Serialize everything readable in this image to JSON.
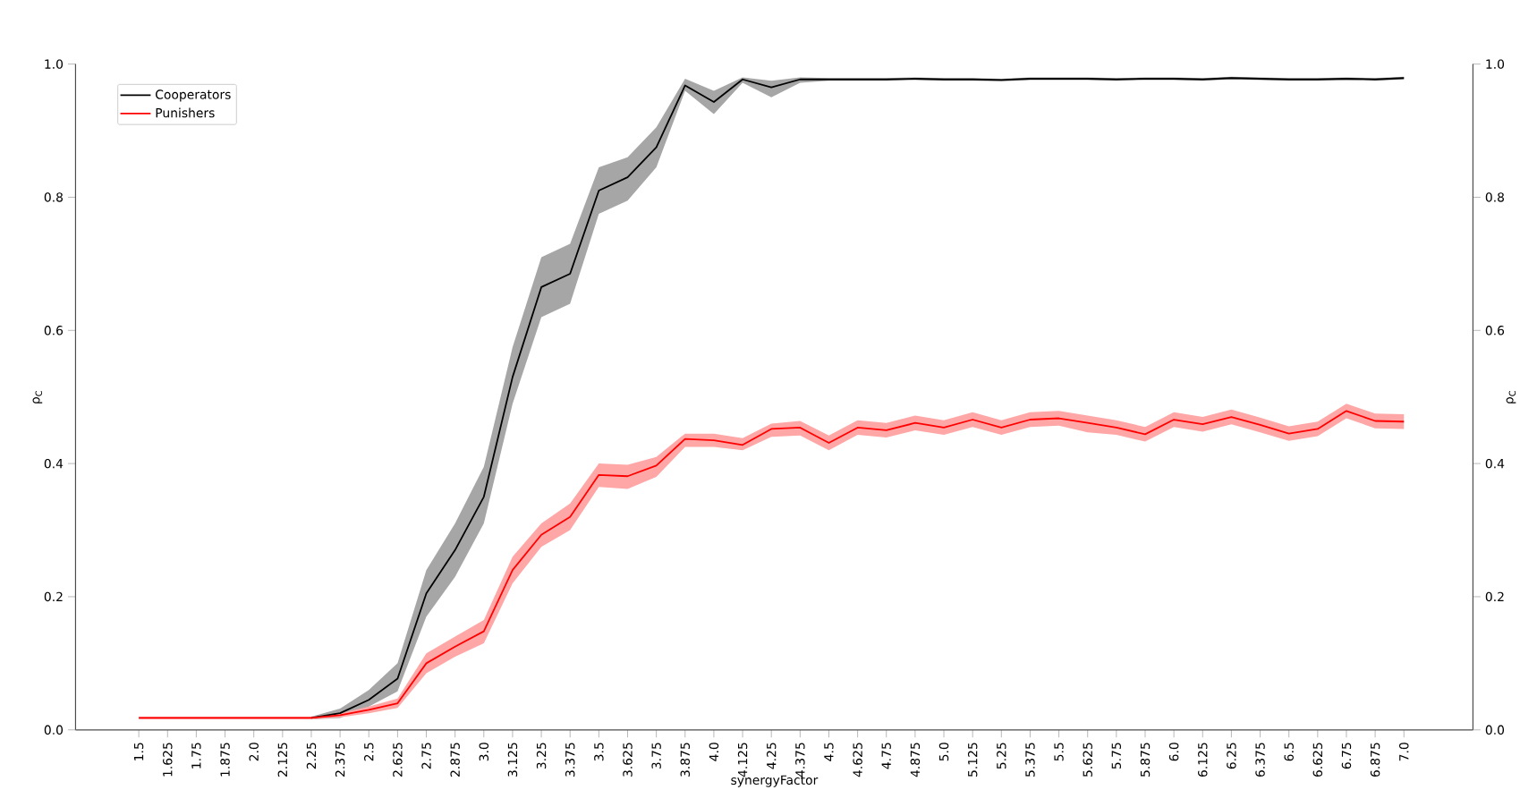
{
  "chart_data": {
    "type": "line",
    "categories": [
      "1.5",
      "1.625",
      "1.75",
      "1.875",
      "2.0",
      "2.125",
      "2.25",
      "2.375",
      "2.5",
      "2.625",
      "2.75",
      "2.875",
      "3.0",
      "3.125",
      "3.25",
      "3.375",
      "3.5",
      "3.625",
      "3.75",
      "3.875",
      "4.0",
      "4.125",
      "4.25",
      "4.375",
      "4.5",
      "4.625",
      "4.75",
      "4.875",
      "5.0",
      "5.125",
      "5.25",
      "5.375",
      "5.5",
      "5.625",
      "5.75",
      "5.875",
      "6.0",
      "6.125",
      "6.25",
      "6.375",
      "6.5",
      "6.625",
      "6.75",
      "6.875",
      "7.0"
    ],
    "series": [
      {
        "name": "Cooperators",
        "color": "#000000",
        "values": [
          null,
          null,
          null,
          null,
          null,
          null,
          0.018,
          0.025,
          0.045,
          0.077,
          0.205,
          0.27,
          0.35,
          0.53,
          0.665,
          0.685,
          0.81,
          0.83,
          0.875,
          0.968,
          0.943,
          0.977,
          0.965,
          0.977,
          0.977,
          0.977,
          0.977,
          0.978,
          0.977,
          0.977,
          0.976,
          0.978,
          0.978,
          0.978,
          0.977,
          0.978,
          0.978,
          0.977,
          0.979,
          0.978,
          0.977,
          0.977,
          0.978,
          0.977,
          0.979
        ],
        "lower": [
          null,
          null,
          null,
          null,
          null,
          null,
          0.016,
          0.018,
          0.035,
          0.058,
          0.17,
          0.23,
          0.31,
          0.49,
          0.62,
          0.64,
          0.775,
          0.795,
          0.845,
          0.96,
          0.925,
          0.972,
          0.95,
          0.972,
          0.975,
          0.975,
          0.975,
          0.976,
          0.975,
          0.975,
          0.974,
          0.976,
          0.976,
          0.976,
          0.975,
          0.976,
          0.976,
          0.975,
          0.977,
          0.976,
          0.975,
          0.975,
          0.976,
          0.975,
          0.977
        ],
        "upper": [
          null,
          null,
          null,
          null,
          null,
          null,
          0.02,
          0.032,
          0.06,
          0.1,
          0.24,
          0.31,
          0.395,
          0.575,
          0.71,
          0.73,
          0.845,
          0.86,
          0.905,
          0.978,
          0.96,
          0.98,
          0.975,
          0.98,
          0.979,
          0.979,
          0.979,
          0.98,
          0.979,
          0.979,
          0.978,
          0.98,
          0.98,
          0.98,
          0.979,
          0.98,
          0.98,
          0.979,
          0.981,
          0.98,
          0.979,
          0.979,
          0.98,
          0.979,
          0.981
        ]
      },
      {
        "name": "Punishers",
        "color": "#ff0000",
        "values": [
          0.018,
          0.018,
          0.018,
          0.018,
          0.018,
          0.018,
          0.018,
          0.022,
          0.03,
          0.04,
          0.1,
          0.125,
          0.148,
          0.24,
          0.293,
          0.32,
          0.383,
          0.381,
          0.397,
          0.437,
          0.435,
          0.428,
          0.452,
          0.454,
          0.431,
          0.454,
          0.45,
          0.461,
          0.454,
          0.466,
          0.454,
          0.466,
          0.468,
          0.461,
          0.454,
          0.444,
          0.466,
          0.459,
          0.47,
          0.458,
          0.445,
          0.452,
          0.479,
          0.464,
          0.463
        ],
        "lower": [
          0.016,
          0.016,
          0.016,
          0.016,
          0.016,
          0.016,
          0.016,
          0.019,
          0.025,
          0.033,
          0.085,
          0.11,
          0.13,
          0.22,
          0.275,
          0.3,
          0.365,
          0.362,
          0.38,
          0.425,
          0.425,
          0.42,
          0.44,
          0.442,
          0.42,
          0.443,
          0.439,
          0.45,
          0.443,
          0.455,
          0.443,
          0.455,
          0.457,
          0.447,
          0.443,
          0.433,
          0.455,
          0.448,
          0.459,
          0.447,
          0.434,
          0.441,
          0.468,
          0.453,
          0.452
        ],
        "upper": [
          0.02,
          0.02,
          0.02,
          0.02,
          0.02,
          0.02,
          0.02,
          0.025,
          0.035,
          0.047,
          0.115,
          0.14,
          0.165,
          0.26,
          0.31,
          0.34,
          0.4,
          0.398,
          0.41,
          0.445,
          0.445,
          0.438,
          0.46,
          0.464,
          0.442,
          0.465,
          0.461,
          0.472,
          0.465,
          0.477,
          0.465,
          0.477,
          0.479,
          0.472,
          0.465,
          0.455,
          0.477,
          0.47,
          0.481,
          0.469,
          0.456,
          0.463,
          0.49,
          0.475,
          0.474
        ]
      }
    ],
    "xlabel": "synergyFactor",
    "ylabel": "ρ$_{C}$",
    "y2label": "ρ$_{C}$",
    "ylim": [
      0,
      1
    ],
    "yticks": [
      {
        "value": 0,
        "label": "0.0"
      },
      0.2,
      0.4,
      0.6,
      0.8,
      {
        "value": 1,
        "label": "1.0"
      }
    ],
    "y2lim": [
      0,
      1
    ],
    "y2ticks": [
      {
        "value": 0,
        "label": "0.0"
      },
      0.2,
      0.4,
      0.6,
      0.8,
      {
        "value": 1,
        "label": "1.0"
      }
    ],
    "legend": "top left"
  }
}
